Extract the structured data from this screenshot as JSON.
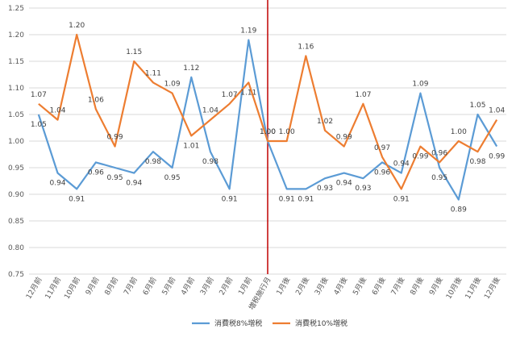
{
  "chart_data": {
    "type": "line",
    "categories": [
      "12月前",
      "11月前",
      "10月前",
      "9月前",
      "8月前",
      "7月前",
      "6月前",
      "5月前",
      "4月前",
      "3月前",
      "2月前",
      "1月前",
      "増税施行月",
      "1月後",
      "2月後",
      "3月後",
      "4月後",
      "5月後",
      "6月後",
      "7月後",
      "8月後",
      "9月後",
      "10月後",
      "11月後",
      "12月後"
    ],
    "series": [
      {
        "name": "消費税8%増税",
        "color": "#5B9BD5",
        "values": [
          1.05,
          0.94,
          0.91,
          0.96,
          0.95,
          0.94,
          0.98,
          0.95,
          1.12,
          0.98,
          0.91,
          1.19,
          1.0,
          0.91,
          0.91,
          0.93,
          0.94,
          0.93,
          0.96,
          0.94,
          1.09,
          0.95,
          0.89,
          1.05,
          0.99
        ]
      },
      {
        "name": "消費税10%増税",
        "color": "#ED7D31",
        "values": [
          1.07,
          1.04,
          1.2,
          1.06,
          0.99,
          1.15,
          1.11,
          1.09,
          1.01,
          1.04,
          1.07,
          1.11,
          1.0,
          1.0,
          1.16,
          1.02,
          0.99,
          1.07,
          0.97,
          0.91,
          0.99,
          0.96,
          1.0,
          0.98,
          1.04
        ]
      }
    ],
    "series_labels_shown": [
      [
        "1.05",
        "0.94",
        "0.91",
        "0.96",
        "0.95",
        "0.94",
        "0.98",
        "0.95",
        "1.12",
        "0.98",
        "0.91",
        "1.19",
        "1.00",
        "0.91",
        "0.91",
        "0.93",
        "0.94",
        "0.93",
        "0.96",
        "0.94",
        "1.09",
        "0.95",
        "0.89",
        "1.05",
        "0.99"
      ],
      [
        "1.07",
        "1.04",
        "1.20",
        "1.06",
        "0.99",
        "1.15",
        "1.11",
        "1.09",
        "1.01",
        "1.04",
        "1.07",
        "1.11",
        "1.00",
        "1.00",
        "1.16",
        "1.02",
        "0.99",
        "1.07",
        "0.97",
        "0.91",
        "0.99",
        "0.96",
        "1.00",
        "0.98",
        "1.04"
      ]
    ],
    "y_ticks": [
      "0.75",
      "0.80",
      "0.85",
      "0.90",
      "0.95",
      "1.00",
      "1.05",
      "1.10",
      "1.15",
      "1.20",
      "1.25"
    ],
    "ylim": [
      0.75,
      1.25
    ],
    "marker_line": {
      "category": "増税施行月",
      "color": "#C00000"
    },
    "grid": true,
    "legend": "bottom",
    "title": "",
    "xlabel": "",
    "ylabel": ""
  }
}
